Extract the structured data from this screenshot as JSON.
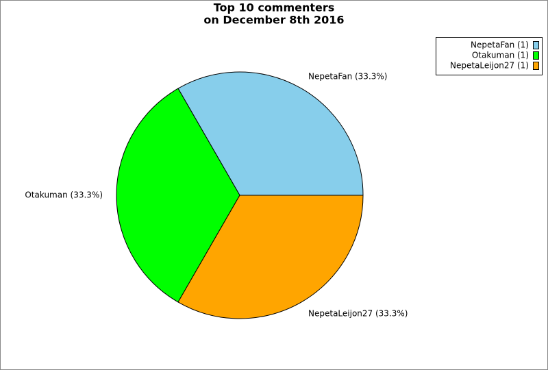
{
  "chart_data": {
    "type": "pie",
    "title": [
      "Top 10 commenters",
      "on December 8th 2016"
    ],
    "categories": [
      "NepetaFan",
      "Otakuman",
      "NepetaLeijon27"
    ],
    "values": [
      1,
      1,
      1
    ],
    "slice_labels": [
      "NepetaFan (33.3%)",
      "Otakuman (33.3%)",
      "NepetaLeijon27 (33.3%)"
    ],
    "legend_labels": [
      "NepetaFan (1)",
      "Otakuman (1)",
      "NepetaLeijon27 (1)"
    ],
    "colors": [
      "#87ceeb",
      "#00ff00",
      "#ffa500"
    ],
    "legend": "top-right"
  }
}
